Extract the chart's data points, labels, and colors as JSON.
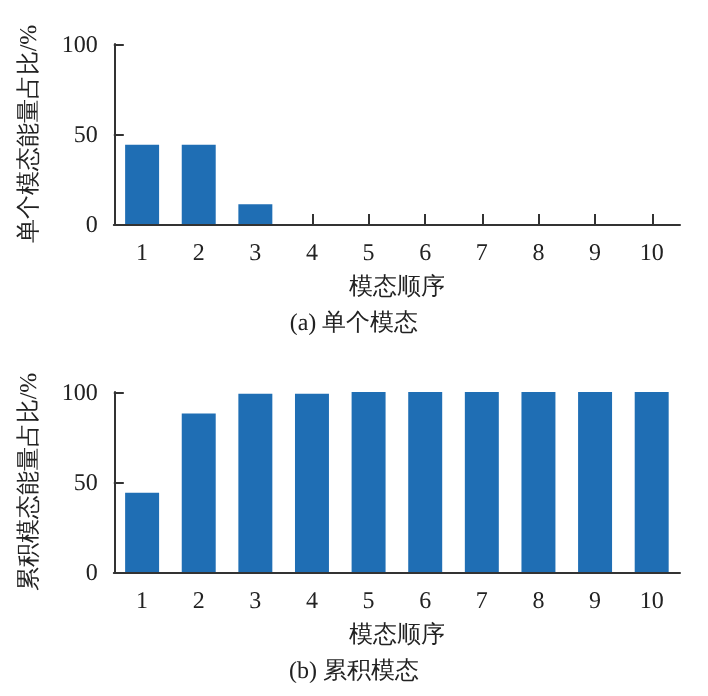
{
  "chart_data": [
    {
      "type": "bar",
      "title": "(a) 单个模态",
      "xlabel": "模态顺序",
      "ylabel": "单个模态能量占比/%",
      "categories": [
        "1",
        "2",
        "3",
        "4",
        "5",
        "6",
        "7",
        "8",
        "9",
        "10"
      ],
      "values": [
        44,
        44,
        11,
        0,
        0,
        0,
        0,
        0,
        0,
        0
      ],
      "color": "#1f6eb4",
      "ylim": [
        0,
        100
      ],
      "yticks": [
        0,
        50,
        100
      ],
      "grid": false
    },
    {
      "type": "bar",
      "title": "(b) 累积模态",
      "xlabel": "模态顺序",
      "ylabel": "累积模态能量占比/%",
      "categories": [
        "1",
        "2",
        "3",
        "4",
        "5",
        "6",
        "7",
        "8",
        "9",
        "10"
      ],
      "values": [
        44,
        88,
        99,
        99,
        100,
        100,
        100,
        100,
        100,
        100
      ],
      "color": "#1f6eb4",
      "ylim": [
        0,
        100
      ],
      "yticks": [
        0,
        50,
        100
      ],
      "grid": false
    }
  ]
}
